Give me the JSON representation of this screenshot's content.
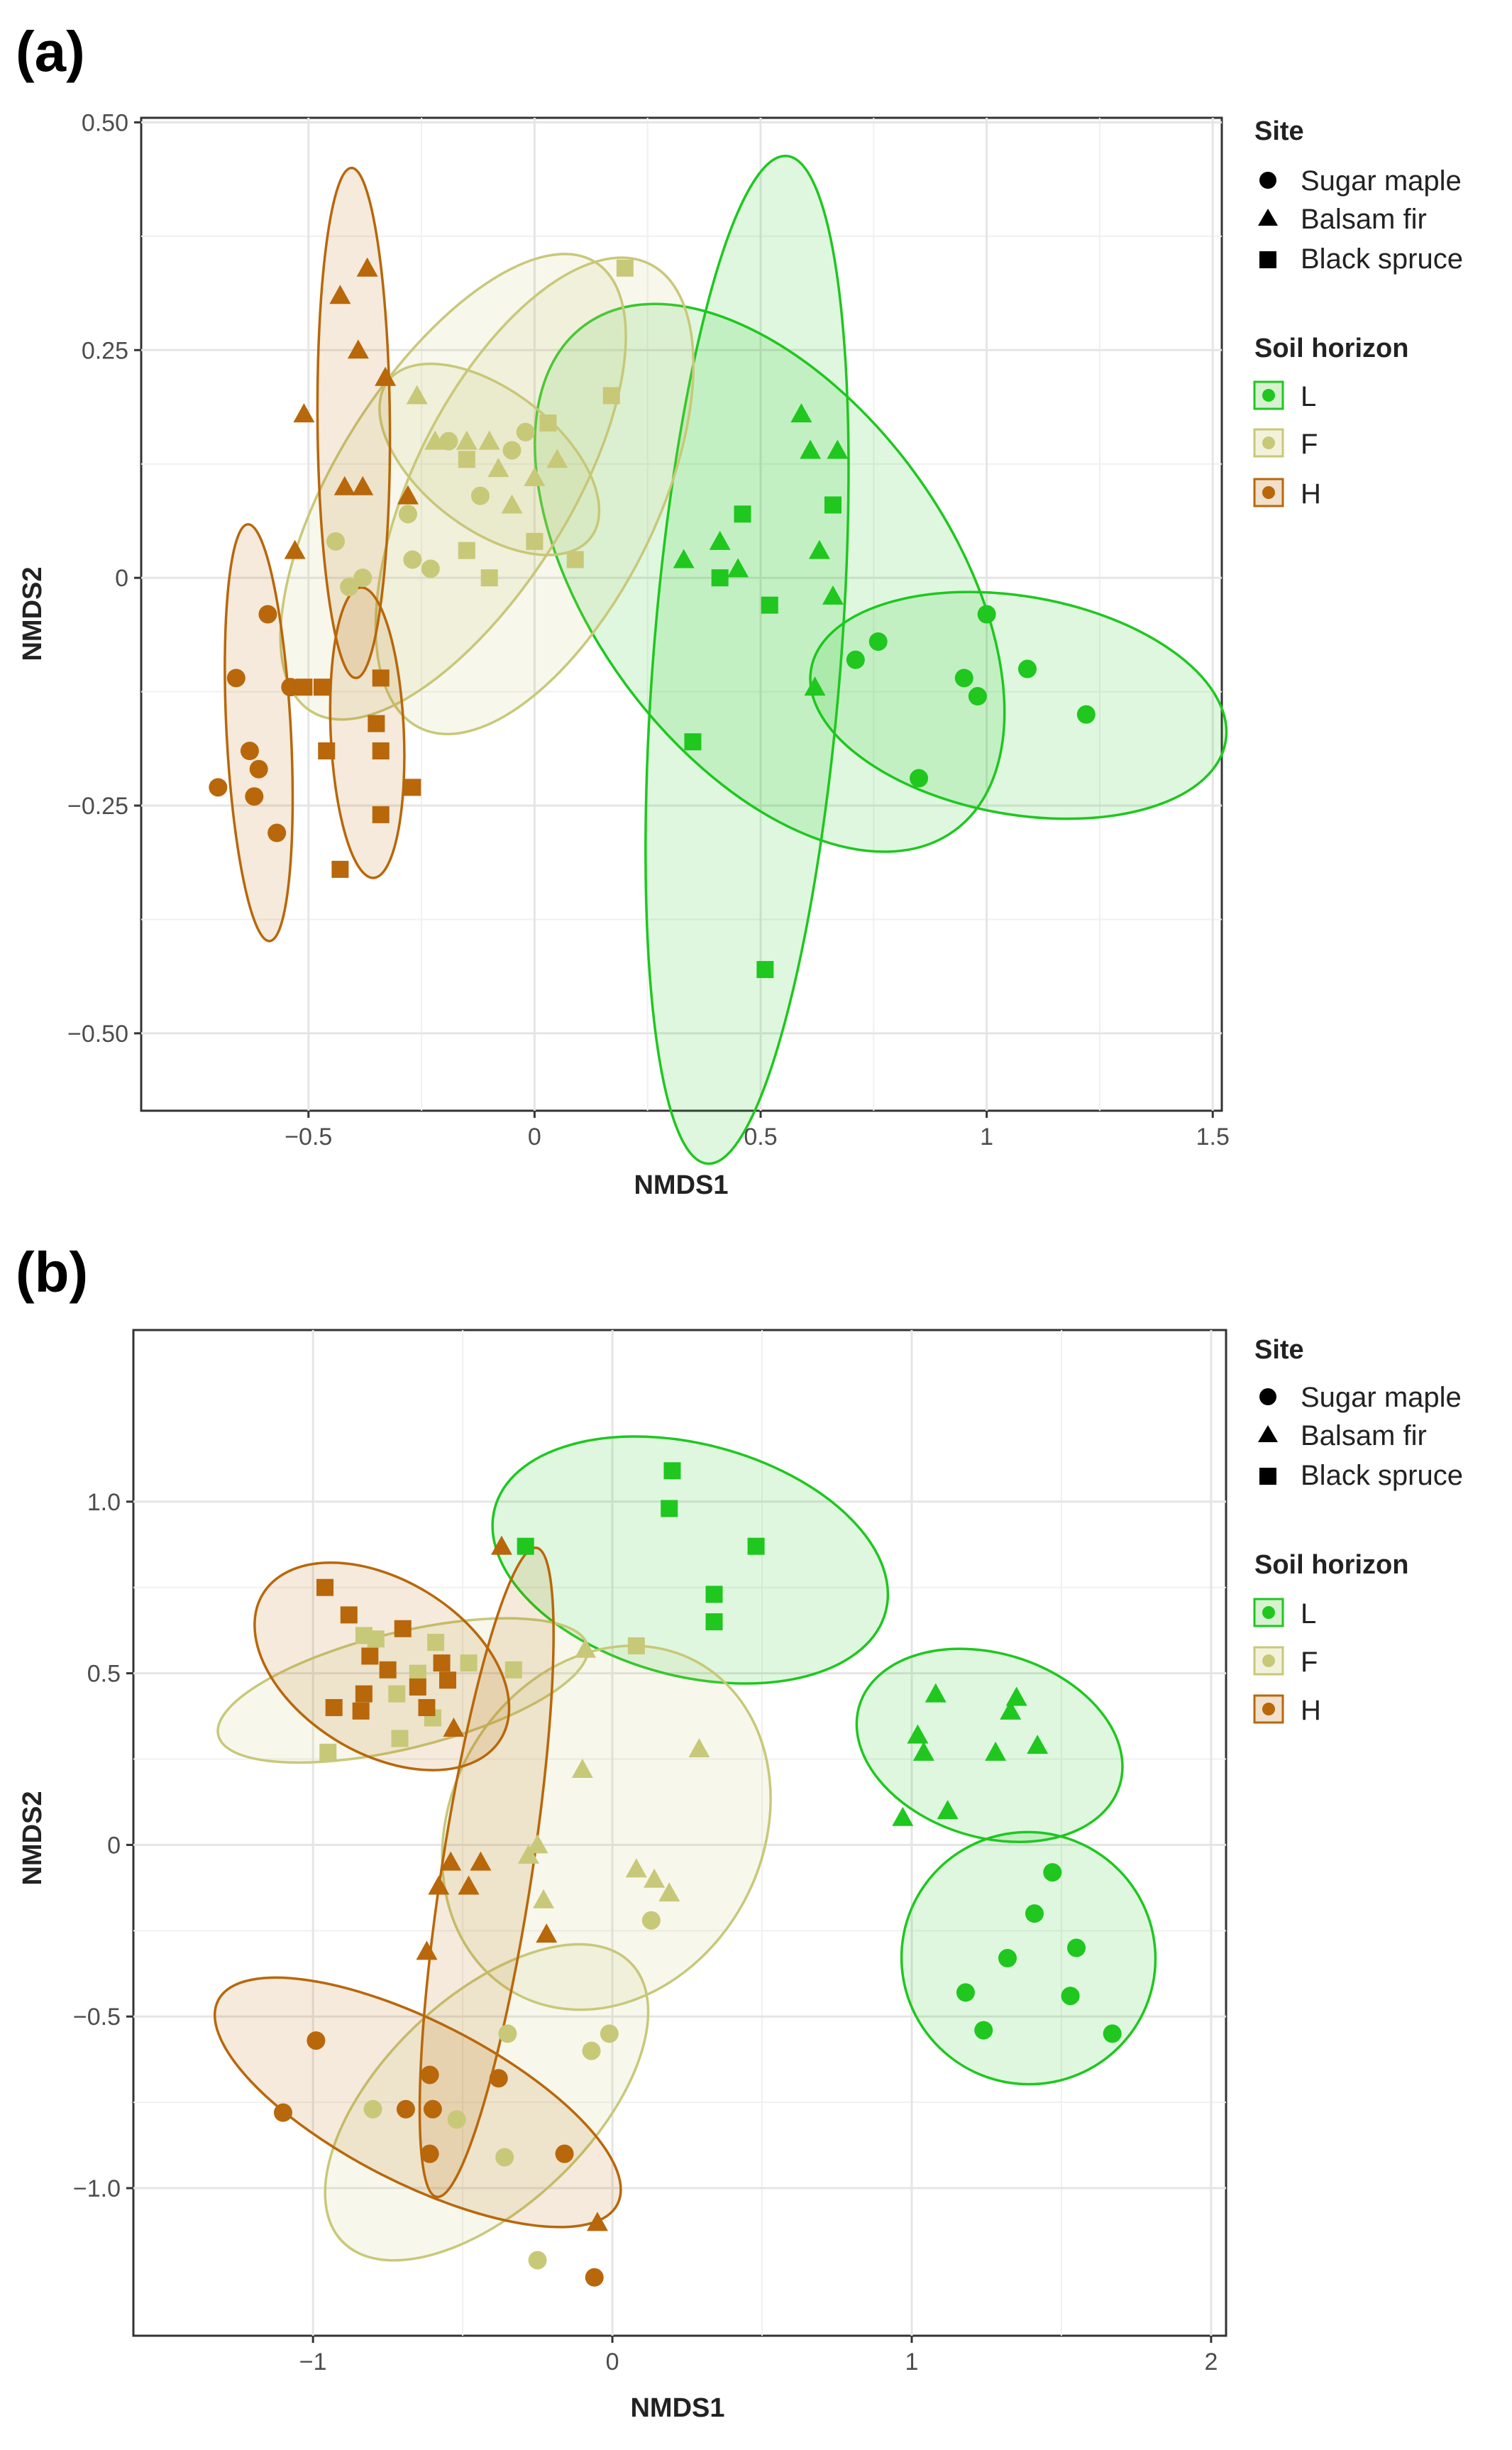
{
  "legend": {
    "site_title": "Site",
    "site_items": [
      {
        "label": "Sugar maple",
        "shape": "circle"
      },
      {
        "label": "Balsam fir",
        "shape": "triangle"
      },
      {
        "label": "Black spruce",
        "shape": "square"
      }
    ],
    "horizon_title": "Soil horizon",
    "horizon_items": [
      {
        "label": "L",
        "color": "#1fc71f"
      },
      {
        "label": "F",
        "color": "#c8c879"
      },
      {
        "label": "H",
        "color": "#b8670a"
      }
    ]
  },
  "chart_data": [
    {
      "panel_label": "(a)",
      "type": "scatter",
      "xlabel": "NMDS1",
      "ylabel": "NMDS2",
      "xlim": [
        -0.87,
        1.52
      ],
      "ylim": [
        -0.585,
        0.505
      ],
      "xticks": [
        -0.5,
        0,
        0.5,
        1,
        1.5
      ],
      "xtick_labels": [
        "−0.5",
        "0",
        "0.5",
        "1",
        "1.5"
      ],
      "yticks": [
        -0.5,
        -0.25,
        0,
        0.25,
        0.5
      ],
      "ytick_labels": [
        "−0.50",
        "−0.25",
        "0",
        "0.25",
        "0.50"
      ],
      "groups": [
        {
          "horizon": "L",
          "site": "Sugar maple",
          "color": "#1fc71f",
          "ellipse": {
            "cx": 1.07,
            "cy": -0.14,
            "rx": 0.46,
            "ry": 0.12,
            "angle": -5
          },
          "points": [
            [
              0.71,
              -0.09
            ],
            [
              0.76,
              -0.07
            ],
            [
              0.85,
              -0.22
            ],
            [
              0.95,
              -0.11
            ],
            [
              0.98,
              -0.13
            ],
            [
              1.0,
              -0.04
            ],
            [
              1.09,
              -0.1
            ],
            [
              1.22,
              -0.15
            ]
          ]
        },
        {
          "horizon": "L",
          "site": "Balsam fir",
          "color": "#1fc71f",
          "ellipse": {
            "cx": 0.52,
            "cy": 0.0,
            "rx": 0.34,
            "ry": 0.36,
            "angle": 20
          },
          "points": [
            [
              0.33,
              0.02
            ],
            [
              0.41,
              0.04
            ],
            [
              0.45,
              0.01
            ],
            [
              0.59,
              0.18
            ],
            [
              0.61,
              0.14
            ],
            [
              0.67,
              0.14
            ],
            [
              0.63,
              0.03
            ],
            [
              0.66,
              -0.02
            ],
            [
              0.62,
              -0.12
            ]
          ]
        },
        {
          "horizon": "L",
          "site": "Black spruce",
          "color": "#1fc71f",
          "ellipse": {
            "cx": 0.47,
            "cy": -0.09,
            "rx": 0.56,
            "ry": 0.2,
            "angle": 81
          },
          "points": [
            [
              0.35,
              -0.18
            ],
            [
              0.41,
              0.0
            ],
            [
              0.46,
              0.07
            ],
            [
              0.52,
              -0.03
            ],
            [
              0.66,
              0.08
            ],
            [
              0.51,
              -0.43
            ]
          ]
        },
        {
          "horizon": "F",
          "site": "Sugar maple",
          "color": "#c8c879",
          "ellipse": {
            "cx": -0.18,
            "cy": 0.1,
            "rx": 0.4,
            "ry": 0.15,
            "angle": 38
          },
          "points": [
            [
              -0.44,
              0.04
            ],
            [
              -0.41,
              -0.01
            ],
            [
              -0.38,
              0.0
            ],
            [
              -0.27,
              0.02
            ],
            [
              -0.23,
              0.01
            ],
            [
              -0.19,
              0.15
            ],
            [
              -0.12,
              0.09
            ],
            [
              -0.05,
              0.14
            ],
            [
              -0.02,
              0.16
            ],
            [
              -0.28,
              0.07
            ]
          ]
        },
        {
          "horizon": "F",
          "site": "Balsam fir",
          "color": "#c8c879",
          "ellipse": {
            "cx": -0.1,
            "cy": 0.13,
            "rx": 0.24,
            "ry": 0.08,
            "angle": -21
          },
          "points": [
            [
              -0.26,
              0.2
            ],
            [
              -0.22,
              0.15
            ],
            [
              -0.15,
              0.15
            ],
            [
              -0.1,
              0.15
            ],
            [
              -0.08,
              0.12
            ],
            [
              -0.05,
              0.08
            ],
            [
              0.0,
              0.11
            ],
            [
              0.05,
              0.13
            ]
          ]
        },
        {
          "horizon": "F",
          "site": "Black spruce",
          "color": "#c8c879",
          "ellipse": {
            "cx": 0.0,
            "cy": 0.09,
            "rx": 0.36,
            "ry": 0.17,
            "angle": 45
          },
          "points": [
            [
              -0.15,
              0.13
            ],
            [
              -0.1,
              0.0
            ],
            [
              0.0,
              0.04
            ],
            [
              0.03,
              0.17
            ],
            [
              0.09,
              0.02
            ],
            [
              0.17,
              0.2
            ],
            [
              0.2,
              0.34
            ],
            [
              -0.15,
              0.03
            ]
          ]
        },
        {
          "horizon": "H",
          "site": "Sugar maple",
          "color": "#b8670a",
          "ellipse": {
            "cx": -0.61,
            "cy": -0.17,
            "rx": 0.23,
            "ry": 0.07,
            "angle": 96
          },
          "points": [
            [
              -0.7,
              -0.23
            ],
            [
              -0.66,
              -0.11
            ],
            [
              -0.63,
              -0.19
            ],
            [
              -0.62,
              -0.24
            ],
            [
              -0.61,
              -0.21
            ],
            [
              -0.59,
              -0.04
            ],
            [
              -0.57,
              -0.28
            ],
            [
              -0.54,
              -0.12
            ]
          ]
        },
        {
          "horizon": "H",
          "site": "Balsam fir",
          "color": "#b8670a",
          "ellipse": {
            "cx": -0.4,
            "cy": 0.17,
            "rx": 0.28,
            "ry": 0.08,
            "angle": 91
          },
          "points": [
            [
              -0.53,
              0.03
            ],
            [
              -0.51,
              0.18
            ],
            [
              -0.43,
              0.31
            ],
            [
              -0.42,
              0.1
            ],
            [
              -0.39,
              0.25
            ],
            [
              -0.37,
              0.34
            ],
            [
              -0.33,
              0.22
            ],
            [
              -0.38,
              0.1
            ],
            [
              -0.28,
              0.09
            ]
          ]
        },
        {
          "horizon": "H",
          "site": "Black spruce",
          "color": "#b8670a",
          "ellipse": {
            "cx": -0.37,
            "cy": -0.17,
            "rx": 0.16,
            "ry": 0.08,
            "angle": 95
          },
          "points": [
            [
              -0.47,
              -0.12
            ],
            [
              -0.46,
              -0.19
            ],
            [
              -0.43,
              -0.32
            ],
            [
              -0.35,
              -0.16
            ],
            [
              -0.34,
              -0.19
            ],
            [
              -0.34,
              -0.11
            ],
            [
              -0.34,
              -0.26
            ],
            [
              -0.27,
              -0.23
            ],
            [
              -0.51,
              -0.12
            ]
          ]
        }
      ]
    },
    {
      "panel_label": "(b)",
      "type": "scatter",
      "xlabel": "NMDS1",
      "ylabel": "NMDS2",
      "xlim": [
        -1.6,
        2.05
      ],
      "ylim": [
        -1.43,
        1.5
      ],
      "xticks": [
        -1,
        0,
        1,
        2
      ],
      "xtick_labels": [
        "−1",
        "0",
        "1",
        "2"
      ],
      "yticks": [
        -1,
        -0.5,
        0,
        0.5,
        1
      ],
      "ytick_labels": [
        "−1.0",
        "−0.5",
        "0",
        "0.5",
        "1.0"
      ],
      "groups": [
        {
          "horizon": "L",
          "site": "Sugar maple",
          "color": "#1fc71f",
          "ellipse": {
            "cx": 1.39,
            "cy": -0.33,
            "rx": 0.42,
            "ry": 0.37,
            "angle": -15
          },
          "points": [
            [
              1.18,
              -0.43
            ],
            [
              1.24,
              -0.54
            ],
            [
              1.32,
              -0.33
            ],
            [
              1.41,
              -0.2
            ],
            [
              1.47,
              -0.08
            ],
            [
              1.55,
              -0.3
            ],
            [
              1.53,
              -0.44
            ],
            [
              1.67,
              -0.55
            ]
          ]
        },
        {
          "horizon": "L",
          "site": "Balsam fir",
          "color": "#1fc71f",
          "ellipse": {
            "cx": 1.26,
            "cy": 0.29,
            "rx": 0.45,
            "ry": 0.27,
            "angle": -15
          },
          "points": [
            [
              0.97,
              0.08
            ],
            [
              1.02,
              0.32
            ],
            [
              1.04,
              0.27
            ],
            [
              1.08,
              0.44
            ],
            [
              1.12,
              0.1
            ],
            [
              1.28,
              0.27
            ],
            [
              1.33,
              0.39
            ],
            [
              1.35,
              0.43
            ],
            [
              1.42,
              0.29
            ]
          ]
        },
        {
          "horizon": "L",
          "site": "Black spruce",
          "color": "#1fc71f",
          "ellipse": {
            "cx": 0.26,
            "cy": 0.83,
            "rx": 0.67,
            "ry": 0.34,
            "angle": -13
          },
          "points": [
            [
              -0.29,
              0.87
            ],
            [
              0.19,
              0.98
            ],
            [
              0.2,
              1.09
            ],
            [
              0.34,
              0.73
            ],
            [
              0.34,
              0.65
            ],
            [
              0.48,
              0.87
            ]
          ]
        },
        {
          "horizon": "F",
          "site": "Sugar maple",
          "color": "#c8c879",
          "ellipse": {
            "cx": -0.42,
            "cy": -0.75,
            "rx": 0.63,
            "ry": 0.32,
            "angle": 40
          },
          "points": [
            [
              -0.8,
              -0.77
            ],
            [
              -0.52,
              -0.8
            ],
            [
              -0.35,
              -0.55
            ],
            [
              -0.36,
              -0.91
            ],
            [
              -0.25,
              -1.21
            ],
            [
              -0.07,
              -0.6
            ],
            [
              -0.01,
              -0.55
            ],
            [
              0.13,
              -0.22
            ]
          ]
        },
        {
          "horizon": "F",
          "site": "Balsam fir",
          "color": "#c8c879",
          "ellipse": {
            "cx": -0.02,
            "cy": 0.05,
            "rx": 0.57,
            "ry": 0.5,
            "angle": 58
          },
          "points": [
            [
              -0.09,
              0.57
            ],
            [
              -0.1,
              0.22
            ],
            [
              -0.28,
              -0.03
            ],
            [
              -0.25,
              0.0
            ],
            [
              -0.23,
              -0.16
            ],
            [
              0.08,
              -0.07
            ],
            [
              0.14,
              -0.1
            ],
            [
              0.19,
              -0.14
            ],
            [
              0.29,
              0.28
            ]
          ]
        },
        {
          "horizon": "F",
          "site": "Black spruce",
          "color": "#c8c879",
          "ellipse": {
            "cx": -0.7,
            "cy": 0.45,
            "rx": 0.63,
            "ry": 0.17,
            "angle": 12
          },
          "points": [
            [
              -0.95,
              0.27
            ],
            [
              -0.83,
              0.61
            ],
            [
              -0.79,
              0.6
            ],
            [
              -0.72,
              0.44
            ],
            [
              -0.71,
              0.31
            ],
            [
              -0.65,
              0.5
            ],
            [
              -0.59,
              0.59
            ],
            [
              -0.48,
              0.53
            ],
            [
              -0.33,
              0.51
            ],
            [
              0.08,
              0.58
            ],
            [
              -0.6,
              0.37
            ]
          ]
        },
        {
          "horizon": "H",
          "site": "Sugar maple",
          "color": "#b8670a",
          "ellipse": {
            "cx": -0.65,
            "cy": -0.75,
            "rx": 0.73,
            "ry": 0.24,
            "angle": -24
          },
          "points": [
            [
              -1.1,
              -0.78
            ],
            [
              -0.99,
              -0.57
            ],
            [
              -0.69,
              -0.77
            ],
            [
              -0.61,
              -0.67
            ],
            [
              -0.61,
              -0.9
            ],
            [
              -0.38,
              -0.68
            ],
            [
              -0.16,
              -0.9
            ],
            [
              -0.06,
              -1.26
            ],
            [
              -0.6,
              -0.77
            ]
          ]
        },
        {
          "horizon": "H",
          "site": "Balsam fir",
          "color": "#b8670a",
          "ellipse": {
            "cx": -0.42,
            "cy": -0.08,
            "rx": 0.96,
            "ry": 0.15,
            "angle": 80
          },
          "points": [
            [
              -0.37,
              0.87
            ],
            [
              -0.53,
              0.34
            ],
            [
              -0.54,
              -0.05
            ],
            [
              -0.58,
              -0.12
            ],
            [
              -0.44,
              -0.05
            ],
            [
              -0.48,
              -0.12
            ],
            [
              -0.62,
              -0.31
            ],
            [
              -0.22,
              -0.26
            ],
            [
              -0.05,
              -1.1
            ]
          ]
        },
        {
          "horizon": "H",
          "site": "Black spruce",
          "color": "#b8670a",
          "ellipse": {
            "cx": -0.77,
            "cy": 0.52,
            "rx": 0.45,
            "ry": 0.26,
            "angle": -28
          },
          "points": [
            [
              -0.96,
              0.75
            ],
            [
              -0.93,
              0.4
            ],
            [
              -0.88,
              0.67
            ],
            [
              -0.83,
              0.44
            ],
            [
              -0.84,
              0.39
            ],
            [
              -0.81,
              0.55
            ],
            [
              -0.75,
              0.51
            ],
            [
              -0.7,
              0.63
            ],
            [
              -0.65,
              0.46
            ],
            [
              -0.62,
              0.4
            ],
            [
              -0.57,
              0.53
            ],
            [
              -0.55,
              0.48
            ]
          ]
        }
      ]
    }
  ]
}
